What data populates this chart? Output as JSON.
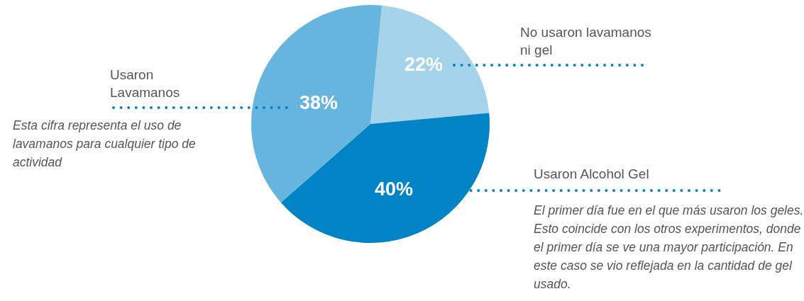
{
  "chart_data": {
    "type": "pie",
    "categories": [
      "No usaron lavamanos ni gel",
      "Usaron Alcohol Gel",
      "Usaron Lavamanos"
    ],
    "values": [
      22,
      40,
      38
    ],
    "colors": [
      "#a5d3ea",
      "#0084c6",
      "#66b5de"
    ],
    "value_labels": [
      "22%",
      "40%",
      "38%"
    ],
    "annotations": [
      "Esta cifra representa el uso de lavamanos para cualquier tipo de actividad",
      "El primer día fue en el que más usaron los geles. Esto coincide con los otros experimentos, donde el primer día se ve una mayor participación. En este caso se vio reflejada en la cantidad de gel usado."
    ]
  }
}
